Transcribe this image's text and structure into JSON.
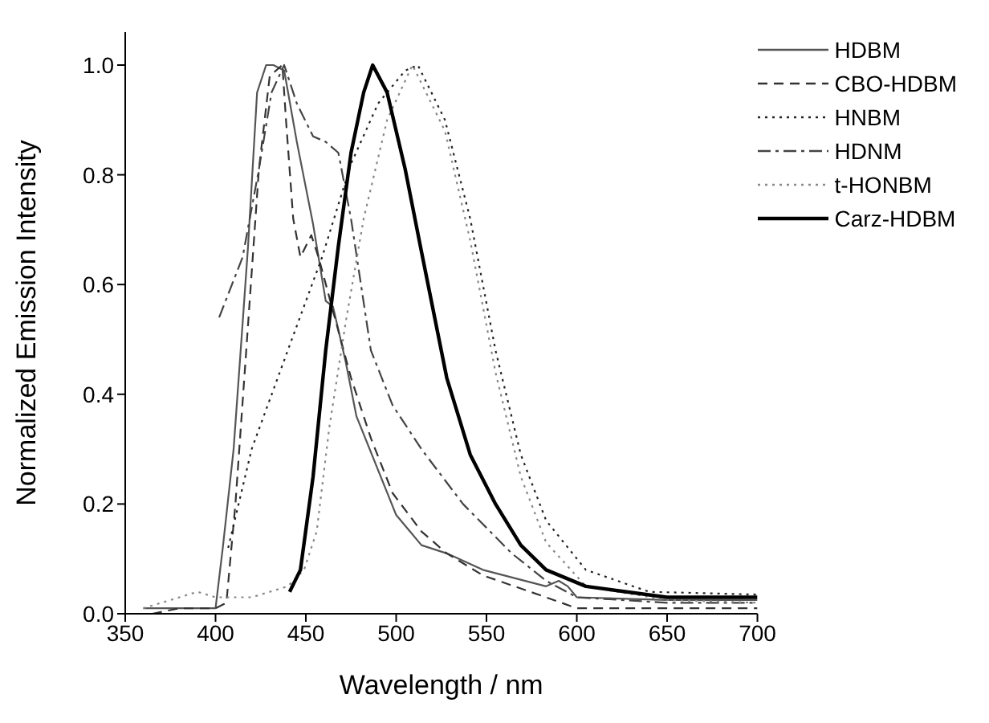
{
  "chart_data": {
    "type": "line",
    "xlabel": "Wavelength / nm",
    "ylabel": "Normalized Emission Intensity",
    "xlim": [
      350,
      700
    ],
    "ylim": [
      0,
      1.06
    ],
    "xticks": [
      350,
      400,
      450,
      500,
      550,
      600,
      650,
      700
    ],
    "yticks": [
      {
        "value": 0,
        "label": "0.0"
      },
      {
        "value": 0.2,
        "label": "0.2"
      },
      {
        "value": 0.4,
        "label": "0.4"
      },
      {
        "value": 0.6,
        "label": "0.6"
      },
      {
        "value": 0.8,
        "label": "0.8"
      },
      {
        "value": 1,
        "label": "1.0"
      }
    ],
    "legend": "top right",
    "marker": "none",
    "series": [
      {
        "name": "HDBM",
        "color": "#555555",
        "line_style": "solid",
        "x": [
          360,
          380,
          400,
          404,
          410,
          415,
          418,
          423,
          428,
          432,
          438,
          445,
          454,
          461,
          465,
          472,
          478,
          489,
          500,
          514,
          528,
          548,
          583,
          590,
          595,
          600,
          650,
          700
        ],
        "values": [
          0.01,
          0.01,
          0.01,
          0.12,
          0.3,
          0.53,
          0.67,
          0.95,
          1.0,
          1.0,
          0.99,
          0.86,
          0.71,
          0.57,
          0.56,
          0.46,
          0.36,
          0.27,
          0.18,
          0.125,
          0.11,
          0.08,
          0.05,
          0.06,
          0.05,
          0.03,
          0.025,
          0.025
        ]
      },
      {
        "name": "CBO-HDBM",
        "color": "#333333",
        "line_style": "dashed",
        "x": [
          365,
          380,
          400,
          406,
          411,
          417,
          424,
          430,
          437,
          439,
          443,
          447,
          453,
          457,
          466,
          475,
          486,
          498,
          514,
          528,
          548,
          583,
          600,
          650,
          700
        ],
        "values": [
          0.0,
          0.01,
          0.01,
          0.02,
          0.2,
          0.48,
          0.81,
          0.98,
          1.0,
          0.9,
          0.72,
          0.65,
          0.69,
          0.65,
          0.54,
          0.43,
          0.32,
          0.22,
          0.15,
          0.11,
          0.07,
          0.03,
          0.01,
          0.01,
          0.01
        ]
      },
      {
        "name": "HNBM",
        "color": "#222222",
        "line_style": "dotted",
        "x": [
          407,
          420,
          440,
          459,
          475,
          490,
          505,
          512,
          527,
          541,
          555,
          569,
          583,
          605,
          640,
          700
        ],
        "values": [
          0.12,
          0.3,
          0.48,
          0.65,
          0.82,
          0.93,
          0.99,
          1.0,
          0.9,
          0.72,
          0.48,
          0.29,
          0.17,
          0.08,
          0.04,
          0.035
        ]
      },
      {
        "name": "HDNM",
        "color": "#444444",
        "line_style": "dashdot",
        "x": [
          402,
          415,
          424,
          431,
          438,
          445,
          454,
          461,
          468,
          475,
          486,
          498,
          514,
          537,
          564,
          583,
          600,
          650,
          700
        ],
        "values": [
          0.54,
          0.65,
          0.81,
          0.95,
          1.0,
          0.93,
          0.87,
          0.86,
          0.84,
          0.72,
          0.48,
          0.38,
          0.3,
          0.2,
          0.11,
          0.06,
          0.03,
          0.02,
          0.02
        ]
      },
      {
        "name": "t-HONBM",
        "color": "#888888",
        "line_style": "dotted",
        "x": [
          360,
          370,
          390,
          400,
          420,
          440,
          449,
          456,
          463,
          472,
          482,
          495,
          509,
          527,
          541,
          555,
          569,
          583,
          605,
          650,
          700
        ],
        "values": [
          0.01,
          0.02,
          0.04,
          0.03,
          0.03,
          0.05,
          0.08,
          0.15,
          0.34,
          0.53,
          0.72,
          0.9,
          1.0,
          0.88,
          0.68,
          0.44,
          0.25,
          0.13,
          0.05,
          0.025,
          0.02
        ]
      },
      {
        "name": "Carz-HDBM",
        "color": "#000000",
        "line_style": "solid",
        "x": [
          441,
          447,
          454,
          461,
          468,
          475,
          482,
          487,
          495,
          505,
          514,
          528,
          541,
          555,
          569,
          583,
          605,
          650,
          700
        ],
        "values": [
          0.04,
          0.08,
          0.25,
          0.48,
          0.67,
          0.84,
          0.95,
          1.0,
          0.95,
          0.81,
          0.66,
          0.43,
          0.29,
          0.2,
          0.125,
          0.08,
          0.05,
          0.03,
          0.03
        ]
      }
    ]
  }
}
